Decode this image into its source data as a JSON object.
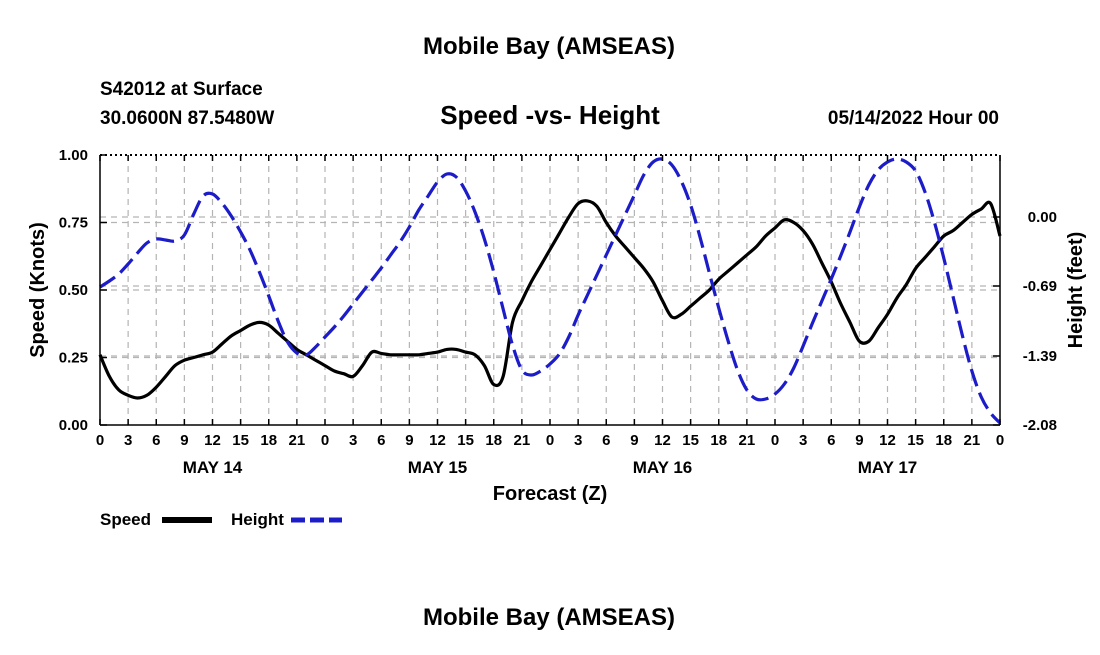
{
  "page": {
    "title": "Mobile Bay (AMSEAS)",
    "bottom_title": "Mobile Bay (AMSEAS)",
    "station": "S42012 at Surface",
    "location": "30.0600N  87.5480W",
    "datetime": "05/14/2022 Hour 00"
  },
  "legend": {
    "speed_label": "Speed",
    "height_label": "Height"
  },
  "colors": {
    "speed": "#000000",
    "height": "#1c1cc8"
  },
  "chart_data": {
    "type": "line",
    "title": "Speed -vs- Height",
    "xlabel": "Forecast (Z)",
    "ylabel_left": "Speed (Knots)",
    "ylabel_right": "Height (feet)",
    "x_unit": "forecast hour",
    "xlim": [
      0,
      96
    ],
    "ylim_left": [
      0,
      1
    ],
    "ylim_right": [
      -2.08,
      0.62
    ],
    "x_ticks": [
      0,
      3,
      6,
      9,
      12,
      15,
      18,
      21,
      24,
      27,
      30,
      33,
      36,
      39,
      42,
      45,
      48,
      51,
      54,
      57,
      60,
      63,
      66,
      69,
      72,
      75,
      78,
      81,
      84,
      87,
      90,
      93,
      96
    ],
    "x_tick_labels": [
      "0",
      "3",
      "6",
      "9",
      "12",
      "15",
      "18",
      "21",
      "0",
      "3",
      "6",
      "9",
      "12",
      "15",
      "18",
      "21",
      "0",
      "3",
      "6",
      "9",
      "12",
      "15",
      "18",
      "21",
      "0",
      "3",
      "6",
      "9",
      "12",
      "15",
      "18",
      "21",
      "0"
    ],
    "day_labels": [
      {
        "label": "MAY 14",
        "hour": 12
      },
      {
        "label": "MAY 15",
        "hour": 36
      },
      {
        "label": "MAY 16",
        "hour": 60
      },
      {
        "label": "MAY 17",
        "hour": 84
      }
    ],
    "y_left_ticks": [
      0,
      0.25,
      0.5,
      0.75,
      1.0
    ],
    "y_left_tick_labels": [
      "0.00",
      "0.25",
      "0.50",
      "0.75",
      "1.00"
    ],
    "y_right_ticks": [
      0.0,
      -0.69,
      -1.39,
      -2.08
    ],
    "y_right_tick_labels": [
      "0.00",
      "-0.69",
      "-1.39",
      "-2.08"
    ],
    "grid": true,
    "legend_position": "bottom-left",
    "series": [
      {
        "name": "Speed",
        "axis": "left",
        "style": "solid",
        "x": [
          0,
          1,
          2,
          3,
          4,
          5,
          6,
          7,
          8,
          9,
          10,
          11,
          12,
          13,
          14,
          15,
          16,
          17,
          18,
          19,
          20,
          21,
          22,
          23,
          24,
          25,
          26,
          27,
          28,
          29,
          30,
          31,
          32,
          33,
          34,
          35,
          36,
          37,
          38,
          39,
          40,
          41,
          42,
          43,
          44,
          45,
          46,
          47,
          48,
          49,
          50,
          51,
          52,
          53,
          54,
          55,
          56,
          57,
          58,
          59,
          60,
          61,
          62,
          63,
          64,
          65,
          66,
          67,
          68,
          69,
          70,
          71,
          72,
          73,
          74,
          75,
          76,
          77,
          78,
          79,
          80,
          81,
          82,
          83,
          84,
          85,
          86,
          87,
          88,
          89,
          90,
          91,
          92,
          93,
          94,
          95,
          96
        ],
        "values": [
          0.26,
          0.18,
          0.13,
          0.11,
          0.1,
          0.11,
          0.14,
          0.18,
          0.22,
          0.24,
          0.25,
          0.26,
          0.27,
          0.3,
          0.33,
          0.35,
          0.37,
          0.38,
          0.37,
          0.34,
          0.31,
          0.28,
          0.26,
          0.24,
          0.22,
          0.2,
          0.19,
          0.18,
          0.22,
          0.27,
          0.265,
          0.26,
          0.26,
          0.26,
          0.26,
          0.265,
          0.27,
          0.28,
          0.28,
          0.27,
          0.26,
          0.22,
          0.15,
          0.18,
          0.38,
          0.46,
          0.53,
          0.59,
          0.65,
          0.71,
          0.77,
          0.82,
          0.83,
          0.81,
          0.75,
          0.7,
          0.66,
          0.62,
          0.58,
          0.53,
          0.46,
          0.4,
          0.41,
          0.44,
          0.47,
          0.5,
          0.54,
          0.57,
          0.6,
          0.63,
          0.66,
          0.7,
          0.73,
          0.76,
          0.75,
          0.72,
          0.67,
          0.6,
          0.53,
          0.45,
          0.38,
          0.31,
          0.31,
          0.36,
          0.41,
          0.47,
          0.52,
          0.58,
          0.62,
          0.66,
          0.7,
          0.72,
          0.75,
          0.78,
          0.8,
          0.82,
          0.7
        ]
      },
      {
        "name": "Height",
        "axis": "right",
        "style": "dashed",
        "x": [
          0,
          1,
          2,
          3,
          4,
          5,
          6,
          7,
          8,
          9,
          10,
          11,
          12,
          13,
          14,
          15,
          16,
          17,
          18,
          19,
          20,
          21,
          22,
          23,
          24,
          25,
          26,
          27,
          28,
          29,
          30,
          31,
          32,
          33,
          34,
          35,
          36,
          37,
          38,
          39,
          40,
          41,
          42,
          43,
          44,
          45,
          46,
          47,
          48,
          49,
          50,
          51,
          52,
          53,
          54,
          55,
          56,
          57,
          58,
          59,
          60,
          61,
          62,
          63,
          64,
          65,
          66,
          67,
          68,
          69,
          70,
          71,
          72,
          73,
          74,
          75,
          76,
          77,
          78,
          79,
          80,
          81,
          82,
          83,
          84,
          85,
          86,
          87,
          88,
          89,
          90,
          91,
          92,
          93,
          94,
          95,
          96
        ],
        "values": [
          -0.7,
          -0.64,
          -0.57,
          -0.47,
          -0.36,
          -0.26,
          -0.22,
          -0.23,
          -0.24,
          -0.18,
          0.03,
          0.21,
          0.23,
          0.14,
          0.01,
          -0.15,
          -0.33,
          -0.55,
          -0.79,
          -1.04,
          -1.25,
          -1.36,
          -1.38,
          -1.3,
          -1.2,
          -1.1,
          -0.99,
          -0.87,
          -0.75,
          -0.63,
          -0.51,
          -0.38,
          -0.25,
          -0.1,
          0.07,
          0.21,
          0.35,
          0.43,
          0.4,
          0.26,
          0.05,
          -0.22,
          -0.55,
          -0.92,
          -1.28,
          -1.53,
          -1.58,
          -1.54,
          -1.47,
          -1.37,
          -1.2,
          -0.98,
          -0.78,
          -0.58,
          -0.38,
          -0.18,
          0.02,
          0.22,
          0.42,
          0.55,
          0.58,
          0.52,
          0.36,
          0.12,
          -0.2,
          -0.56,
          -0.91,
          -1.24,
          -1.53,
          -1.73,
          -1.82,
          -1.82,
          -1.77,
          -1.67,
          -1.51,
          -1.29,
          -1.06,
          -0.84,
          -0.62,
          -0.39,
          -0.15,
          0.1,
          0.32,
          0.47,
          0.55,
          0.58,
          0.55,
          0.46,
          0.25,
          -0.05,
          -0.41,
          -0.8,
          -1.19,
          -1.54,
          -1.8,
          -1.96,
          -2.06
        ]
      }
    ]
  }
}
